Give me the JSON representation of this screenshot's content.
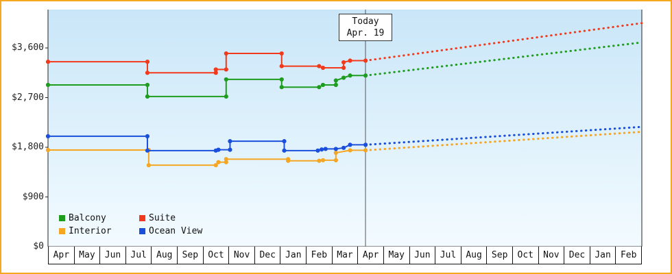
{
  "chart_data": {
    "type": "line",
    "description": "Cabin price history (solid step lines) and forecast (dotted lines) by cabin category",
    "today": {
      "line1": "Today",
      "line2": "Apr. 19",
      "month_position": 12.3
    },
    "y_axis": {
      "ticks": [
        0,
        900,
        1800,
        2700,
        3600
      ],
      "tick_labels": [
        "$0",
        "$900",
        "$1,800",
        "$2,700",
        "$3,600"
      ],
      "range": [
        0,
        4300
      ]
    },
    "x_axis": {
      "months": [
        "Apr",
        "May",
        "Jun",
        "Jul",
        "Aug",
        "Sep",
        "Oct",
        "Nov",
        "Dec",
        "Jan",
        "Feb",
        "Mar",
        "Apr",
        "May",
        "Jun",
        "Jul",
        "Aug",
        "Sep",
        "Oct",
        "Nov",
        "Dec",
        "Jan",
        "Feb"
      ]
    },
    "legend": {
      "rows": [
        [
          "Balcony",
          "Suite"
        ],
        [
          "Interior",
          "Ocean View"
        ]
      ]
    },
    "series": [
      {
        "name": "Interior",
        "color": "#f5a623",
        "history": [
          [
            0,
            1750
          ],
          [
            3.9,
            1750
          ],
          [
            3.9,
            1475
          ],
          [
            6.5,
            1475
          ],
          [
            6.6,
            1530
          ],
          [
            6.9,
            1530
          ],
          [
            6.9,
            1585
          ],
          [
            9.3,
            1585
          ],
          [
            9.3,
            1555
          ],
          [
            10.5,
            1555
          ],
          [
            10.65,
            1565
          ],
          [
            11.15,
            1565
          ],
          [
            11.15,
            1700
          ],
          [
            11.7,
            1745
          ],
          [
            12.3,
            1745
          ]
        ],
        "forecast_end_value": 2080
      },
      {
        "name": "Ocean View",
        "color": "#1a4fdc",
        "history": [
          [
            0,
            2000
          ],
          [
            3.85,
            2000
          ],
          [
            3.85,
            1740
          ],
          [
            6.5,
            1740
          ],
          [
            6.6,
            1755
          ],
          [
            7.05,
            1755
          ],
          [
            7.05,
            1910
          ],
          [
            9.15,
            1910
          ],
          [
            9.15,
            1740
          ],
          [
            10.45,
            1740
          ],
          [
            10.6,
            1760
          ],
          [
            10.75,
            1770
          ],
          [
            11.15,
            1770
          ],
          [
            11.45,
            1790
          ],
          [
            11.7,
            1845
          ],
          [
            12.3,
            1845
          ]
        ],
        "forecast_end_value": 2170
      },
      {
        "name": "Balcony",
        "color": "#1e9c1e",
        "history": [
          [
            0,
            2930
          ],
          [
            3.85,
            2930
          ],
          [
            3.85,
            2720
          ],
          [
            6.9,
            2720
          ],
          [
            6.9,
            3030
          ],
          [
            9.05,
            3030
          ],
          [
            9.05,
            2890
          ],
          [
            10.5,
            2890
          ],
          [
            10.65,
            2930
          ],
          [
            11.15,
            2930
          ],
          [
            11.15,
            3010
          ],
          [
            11.45,
            3060
          ],
          [
            11.7,
            3100
          ],
          [
            12.3,
            3100
          ]
        ],
        "forecast_end_value": 3700
      },
      {
        "name": "Suite",
        "color": "#f2391b",
        "history": [
          [
            0,
            3350
          ],
          [
            3.85,
            3350
          ],
          [
            3.85,
            3150
          ],
          [
            6.5,
            3150
          ],
          [
            6.5,
            3210
          ],
          [
            6.9,
            3210
          ],
          [
            6.9,
            3500
          ],
          [
            9.05,
            3500
          ],
          [
            9.05,
            3270
          ],
          [
            10.5,
            3270
          ],
          [
            10.65,
            3240
          ],
          [
            11.45,
            3240
          ],
          [
            11.45,
            3340
          ],
          [
            11.7,
            3370
          ],
          [
            12.3,
            3370
          ]
        ],
        "forecast_end_value": 4050
      }
    ],
    "style": {
      "plot_bg_top": "#c9e6f8",
      "plot_bg_bottom": "#f3fbff",
      "axis_color": "#222222",
      "today_line_color": "#555555",
      "page_border_color": "#f6a821"
    }
  }
}
